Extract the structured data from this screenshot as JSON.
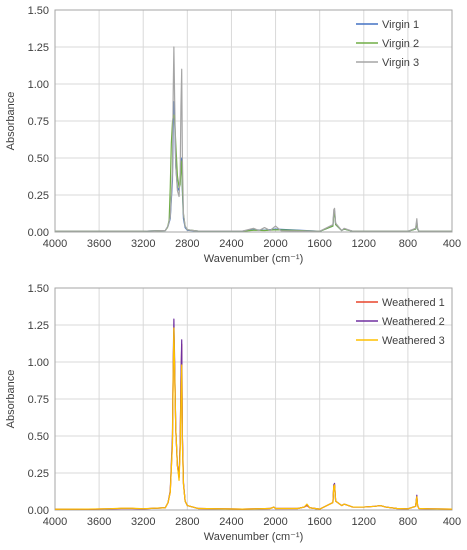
{
  "chart_data": [
    {
      "type": "line",
      "xlabel": "Wavenumber (cm⁻¹)",
      "ylabel": "Absorbance",
      "xlim": [
        4000,
        400
      ],
      "x_reversed": true,
      "ylim": [
        0,
        1.5
      ],
      "xticks": [
        "4000",
        "3600",
        "3200",
        "2800",
        "2400",
        "2000",
        "1600",
        "1200",
        "800",
        "400"
      ],
      "yticks": [
        "0.00",
        "0.25",
        "0.50",
        "0.75",
        "1.00",
        "1.25",
        "1.50"
      ],
      "grid": true,
      "legend_position": "top-right",
      "series": [
        {
          "name": "Virgin 1",
          "color": "#4472c4",
          "x": [
            4000,
            3200,
            3000,
            2975,
            2955,
            2935,
            2928,
            2922,
            2915,
            2905,
            2890,
            2875,
            2865,
            2858,
            2851,
            2845,
            2835,
            2820,
            2800,
            2700,
            2300,
            2200,
            2100,
            2000,
            1600,
            1480,
            1472,
            1465,
            1455,
            1400,
            1378,
            1300,
            800,
            730,
            719,
            712,
            700,
            400
          ],
          "y": [
            0.005,
            0.005,
            0.01,
            0.04,
            0.09,
            0.35,
            0.7,
            0.88,
            0.78,
            0.45,
            0.3,
            0.28,
            0.35,
            0.45,
            0.5,
            0.28,
            0.09,
            0.03,
            0.012,
            0.006,
            0.006,
            0.015,
            0.012,
            0.02,
            0.005,
            0.04,
            0.13,
            0.14,
            0.05,
            0.01,
            0.02,
            0.005,
            0.005,
            0.02,
            0.07,
            0.02,
            0.005,
            0.005
          ]
        },
        {
          "name": "Virgin 2",
          "color": "#70ad47",
          "x": [
            4000,
            3200,
            3000,
            2980,
            2965,
            2955,
            2945,
            2935,
            2928,
            2922,
            2915,
            2905,
            2890,
            2875,
            2865,
            2858,
            2851,
            2845,
            2835,
            2820,
            2800,
            2700,
            2300,
            2200,
            2100,
            2000,
            1600,
            1480,
            1472,
            1465,
            1455,
            1400,
            1378,
            1300,
            800,
            730,
            719,
            712,
            700,
            400
          ],
          "y": [
            0.005,
            0.005,
            0.01,
            0.03,
            0.08,
            0.3,
            0.6,
            0.74,
            0.78,
            0.79,
            0.76,
            0.6,
            0.38,
            0.3,
            0.32,
            0.42,
            0.48,
            0.3,
            0.12,
            0.04,
            0.015,
            0.006,
            0.006,
            0.012,
            0.01,
            0.015,
            0.005,
            0.04,
            0.12,
            0.13,
            0.05,
            0.01,
            0.02,
            0.005,
            0.005,
            0.02,
            0.06,
            0.02,
            0.005,
            0.005
          ]
        },
        {
          "name": "Virgin 3",
          "color": "#a5a5a5",
          "x": [
            4000,
            3200,
            3000,
            2975,
            2955,
            2935,
            2928,
            2922,
            2915,
            2905,
            2890,
            2875,
            2865,
            2858,
            2851,
            2845,
            2835,
            2820,
            2800,
            2700,
            2300,
            2200,
            2150,
            2100,
            2050,
            2000,
            1950,
            1600,
            1480,
            1472,
            1465,
            1455,
            1400,
            1378,
            1300,
            800,
            730,
            719,
            712,
            700,
            400
          ],
          "y": [
            0.005,
            0.005,
            0.01,
            0.04,
            0.1,
            0.4,
            0.95,
            1.25,
            0.9,
            0.45,
            0.28,
            0.24,
            0.4,
            0.85,
            1.1,
            0.5,
            0.12,
            0.04,
            0.015,
            0.006,
            0.006,
            0.025,
            0.01,
            0.03,
            0.01,
            0.04,
            0.008,
            0.005,
            0.05,
            0.15,
            0.16,
            0.06,
            0.01,
            0.025,
            0.005,
            0.005,
            0.025,
            0.09,
            0.025,
            0.005,
            0.005
          ]
        }
      ]
    },
    {
      "type": "line",
      "xlabel": "Wavenumber (cm⁻¹)",
      "ylabel": "Absorbance",
      "xlim": [
        4000,
        400
      ],
      "x_reversed": true,
      "ylim": [
        0,
        1.5
      ],
      "xticks": [
        "4000",
        "3600",
        "3200",
        "2800",
        "2400",
        "2000",
        "1600",
        "1200",
        "800",
        "400"
      ],
      "yticks": [
        "0.00",
        "0.25",
        "0.50",
        "0.75",
        "1.00",
        "1.25",
        "1.50"
      ],
      "grid": true,
      "legend_position": "top-right",
      "series": [
        {
          "name": "Weathered 1",
          "color": "#e8452c",
          "x": [
            4000,
            3700,
            3500,
            3400,
            3300,
            3200,
            3000,
            2975,
            2955,
            2935,
            2928,
            2922,
            2915,
            2905,
            2890,
            2875,
            2865,
            2858,
            2851,
            2845,
            2835,
            2820,
            2800,
            2700,
            2300,
            2050,
            2015,
            2000,
            1800,
            1740,
            1715,
            1690,
            1600,
            1480,
            1472,
            1465,
            1455,
            1400,
            1378,
            1300,
            1200,
            1100,
            1050,
            1000,
            900,
            800,
            730,
            719,
            712,
            700,
            600,
            400
          ],
          "y": [
            0.005,
            0.005,
            0.008,
            0.01,
            0.01,
            0.008,
            0.015,
            0.05,
            0.12,
            0.45,
            0.95,
            1.2,
            0.95,
            0.55,
            0.3,
            0.22,
            0.45,
            0.85,
            1.12,
            0.5,
            0.18,
            0.06,
            0.03,
            0.01,
            0.006,
            0.01,
            0.02,
            0.01,
            0.01,
            0.02,
            0.03,
            0.015,
            0.006,
            0.05,
            0.16,
            0.17,
            0.06,
            0.03,
            0.04,
            0.02,
            0.02,
            0.025,
            0.03,
            0.02,
            0.01,
            0.008,
            0.025,
            0.09,
            0.03,
            0.01,
            0.008,
            0.006
          ]
        },
        {
          "name": "Weathered 2",
          "color": "#7030a0",
          "x": [
            4000,
            3700,
            3500,
            3400,
            3300,
            3200,
            3000,
            2975,
            2955,
            2935,
            2928,
            2922,
            2915,
            2905,
            2890,
            2875,
            2865,
            2858,
            2851,
            2845,
            2835,
            2820,
            2800,
            2700,
            2300,
            2050,
            2015,
            2000,
            1800,
            1740,
            1715,
            1690,
            1600,
            1480,
            1472,
            1465,
            1455,
            1400,
            1378,
            1300,
            1200,
            1100,
            1050,
            1000,
            900,
            800,
            730,
            719,
            712,
            700,
            600,
            400
          ],
          "y": [
            0.005,
            0.005,
            0.008,
            0.01,
            0.01,
            0.008,
            0.015,
            0.05,
            0.13,
            0.5,
            1.0,
            1.29,
            1.0,
            0.55,
            0.3,
            0.22,
            0.45,
            0.88,
            1.15,
            0.5,
            0.18,
            0.06,
            0.03,
            0.01,
            0.006,
            0.01,
            0.02,
            0.01,
            0.01,
            0.02,
            0.035,
            0.015,
            0.006,
            0.05,
            0.17,
            0.18,
            0.06,
            0.03,
            0.04,
            0.02,
            0.02,
            0.025,
            0.03,
            0.02,
            0.01,
            0.008,
            0.025,
            0.1,
            0.03,
            0.01,
            0.008,
            0.006
          ]
        },
        {
          "name": "Weathered 3",
          "color": "#ffc000",
          "x": [
            4000,
            3700,
            3500,
            3400,
            3300,
            3200,
            3000,
            2975,
            2955,
            2935,
            2928,
            2922,
            2915,
            2905,
            2890,
            2875,
            2865,
            2858,
            2851,
            2845,
            2835,
            2820,
            2800,
            2700,
            2300,
            2050,
            2015,
            2000,
            1800,
            1740,
            1715,
            1690,
            1600,
            1480,
            1472,
            1465,
            1455,
            1400,
            1378,
            1300,
            1200,
            1100,
            1050,
            1000,
            900,
            800,
            730,
            719,
            712,
            700,
            600,
            400
          ],
          "y": [
            0.005,
            0.006,
            0.009,
            0.012,
            0.012,
            0.009,
            0.015,
            0.05,
            0.12,
            0.45,
            0.95,
            1.23,
            0.95,
            0.55,
            0.3,
            0.2,
            0.4,
            0.75,
            0.98,
            0.45,
            0.17,
            0.06,
            0.03,
            0.01,
            0.006,
            0.01,
            0.02,
            0.01,
            0.01,
            0.02,
            0.04,
            0.015,
            0.006,
            0.05,
            0.16,
            0.17,
            0.06,
            0.03,
            0.04,
            0.02,
            0.02,
            0.025,
            0.03,
            0.02,
            0.01,
            0.008,
            0.025,
            0.09,
            0.03,
            0.01,
            0.008,
            0.006
          ]
        }
      ]
    }
  ]
}
